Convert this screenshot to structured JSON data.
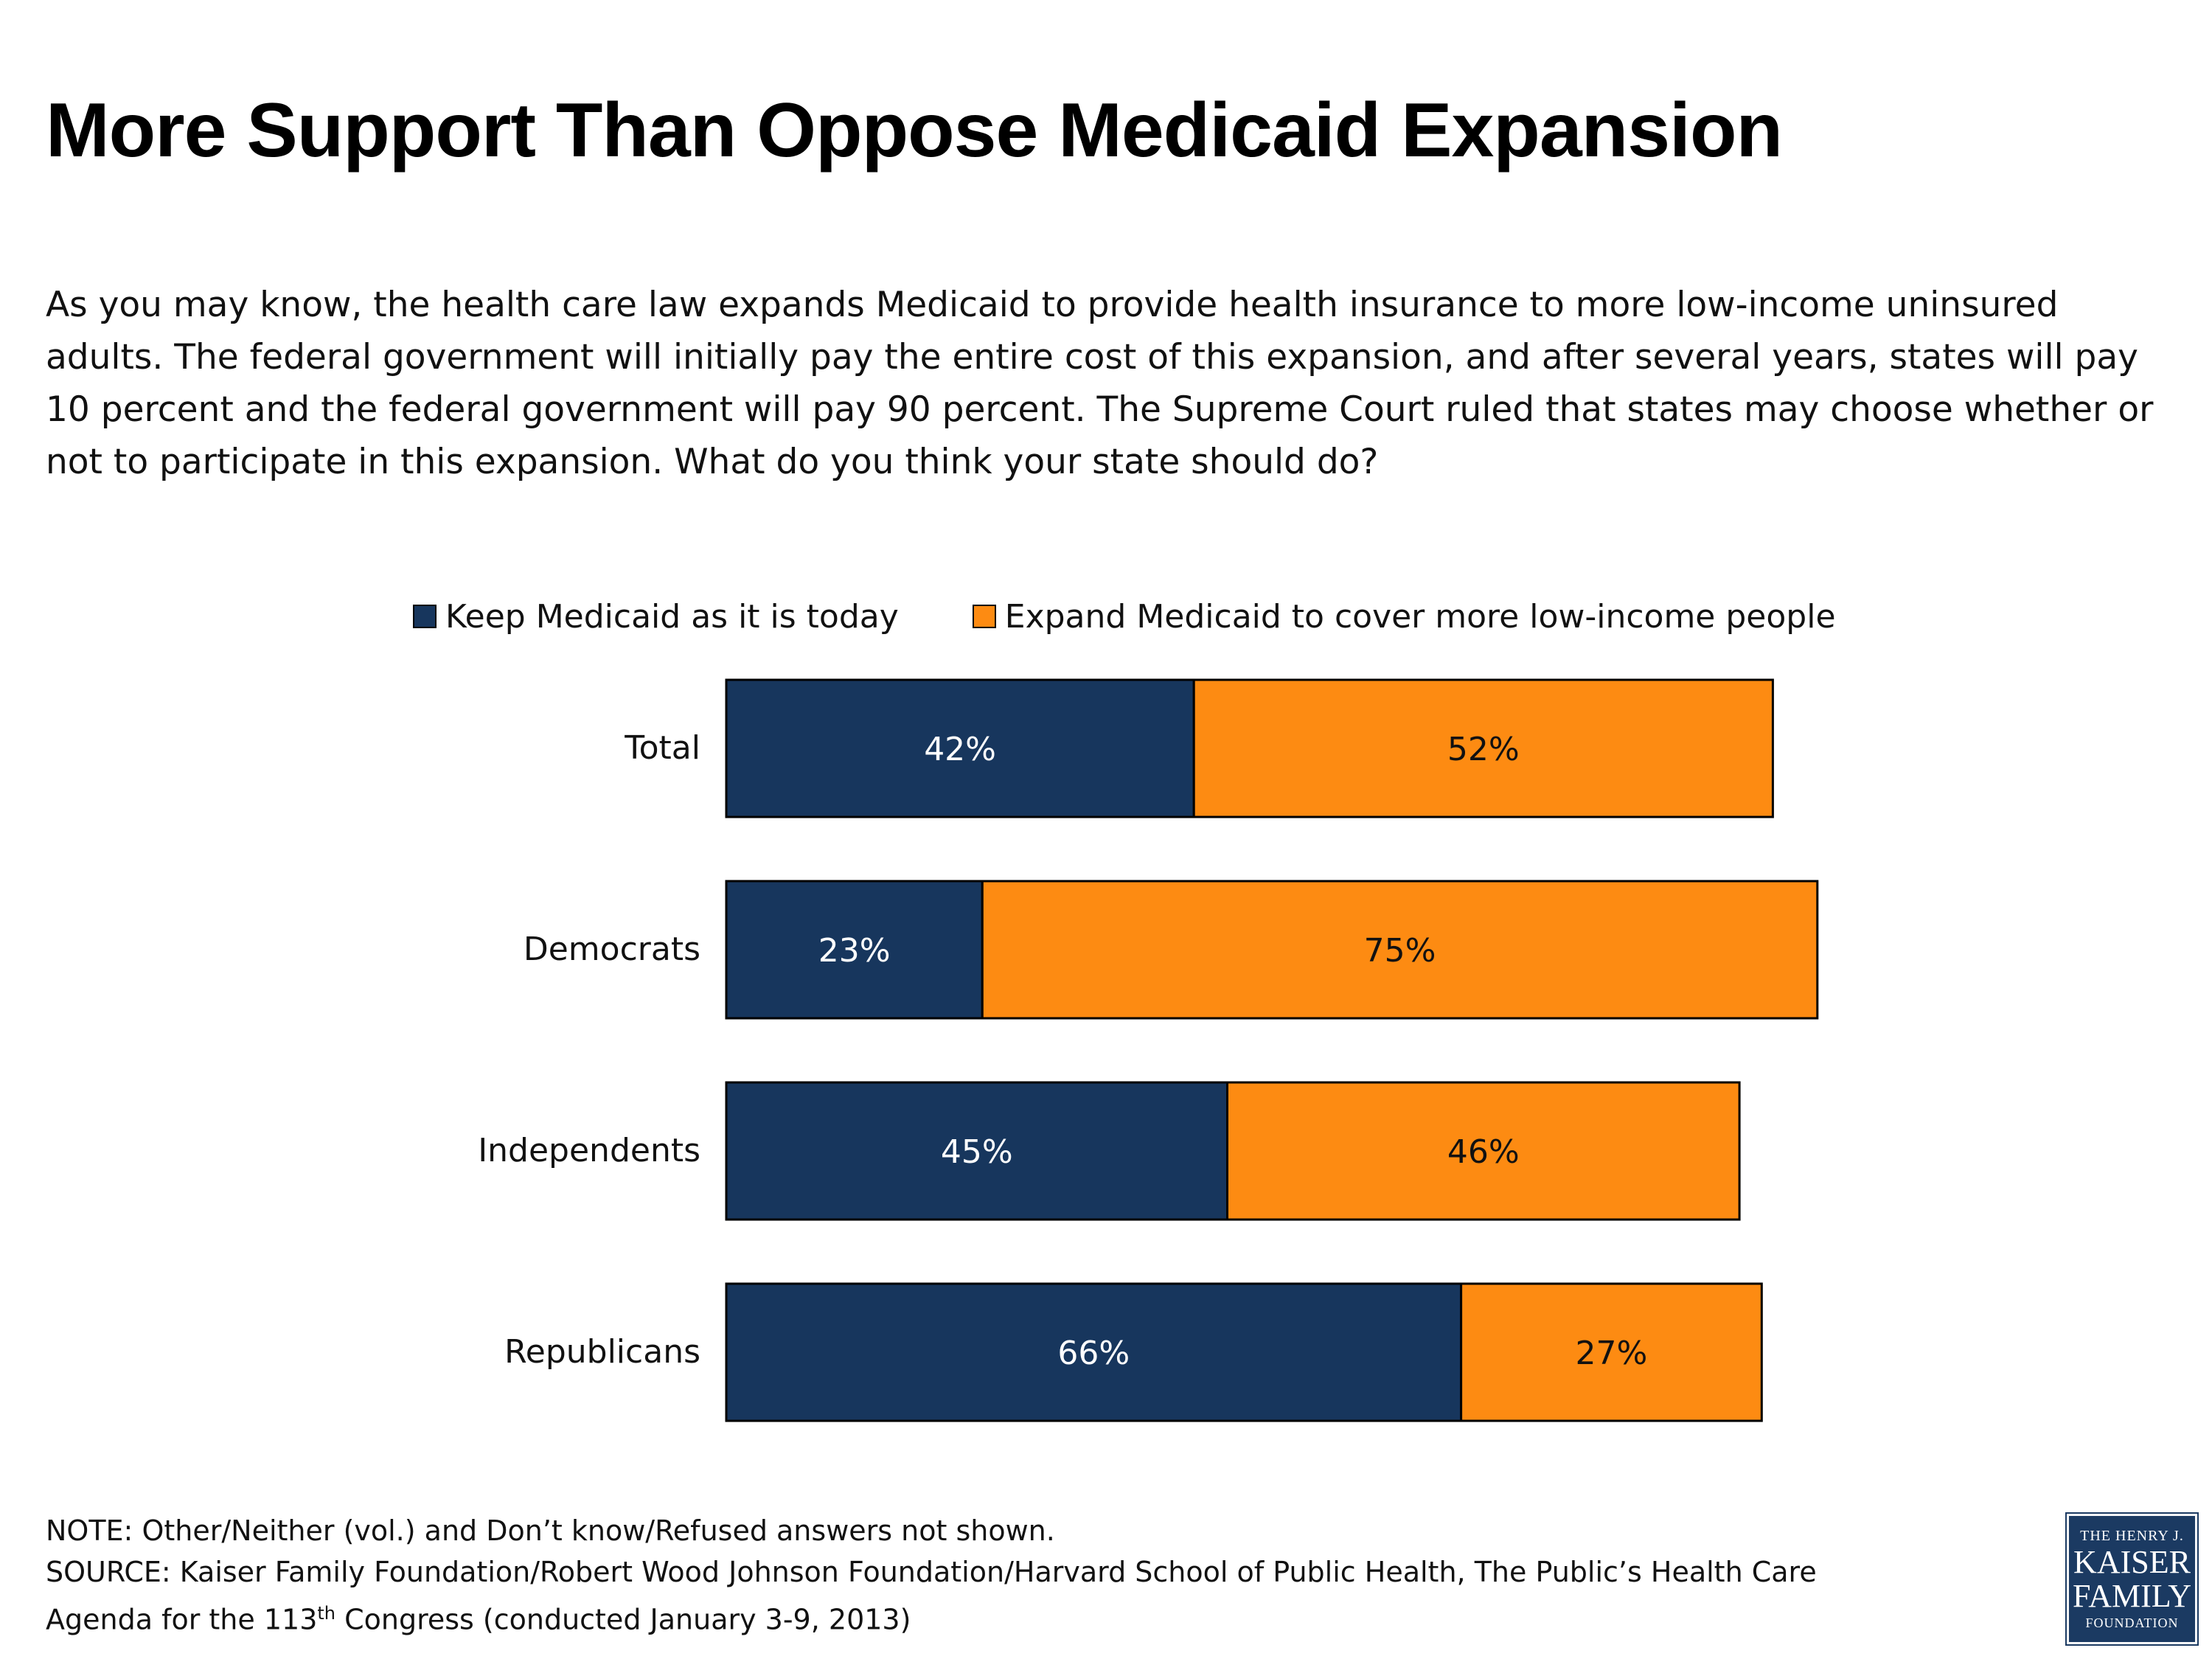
{
  "title": "More Support Than Oppose Medicaid Expansion",
  "question": "As you may know, the health care law expands Medicaid to provide health insurance to more low-income uninsured adults. The federal government will initially pay the entire cost of this expansion, and after several years, states will pay 10 percent and the federal government will pay 90 percent. The Supreme Court ruled that states may choose whether or not to participate in this expansion. What do you think your state should do?",
  "colors": {
    "keep": "#17365d",
    "expand": "#fd8b12",
    "border": "#000000"
  },
  "chart_data": {
    "type": "bar",
    "orientation": "horizontal",
    "stacked": true,
    "categories": [
      "Total",
      "Democrats",
      "Independents",
      "Republicans"
    ],
    "series": [
      {
        "name": "Keep Medicaid as it is today",
        "values": [
          42,
          23,
          45,
          66
        ],
        "labels": [
          "42%",
          "23%",
          "45%",
          "66%"
        ]
      },
      {
        "name": "Expand Medicaid to cover more low-income people",
        "values": [
          52,
          75,
          46,
          27
        ],
        "labels": [
          "52%",
          "75%",
          "46%",
          "27%"
        ]
      }
    ],
    "legend_position": "top",
    "grid": false
  },
  "footer": {
    "note": "NOTE: Other/Neither (vol.) and Don’t know/Refused answers  not shown.",
    "source_line1": "SOURCE: Kaiser Family Foundation/Robert Wood Johnson Foundation/Harvard School of Public Health, The Public’s Health Care",
    "source_line2_pre": "Agenda for the 113",
    "source_line2_sup": "th",
    "source_line2_post": " Congress (conducted January 3-9, 2013)"
  },
  "logo": {
    "line1": "THE HENRY J.",
    "line2": "KAISER",
    "line3": "FAMILY",
    "line4": "FOUNDATION"
  }
}
